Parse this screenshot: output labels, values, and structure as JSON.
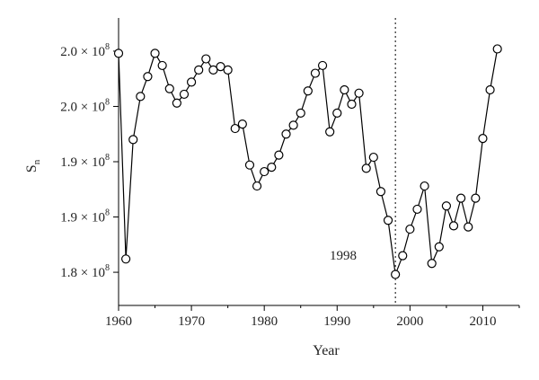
{
  "chart_data": {
    "type": "line",
    "xlabel": "Year",
    "ylabel": "S",
    "ylabel_sub": "n",
    "xlim": [
      1960,
      2015
    ],
    "ylim": [
      1.77,
      2.03
    ],
    "x_ticks": [
      1960,
      1970,
      1980,
      1990,
      2000,
      2010
    ],
    "y_ticks": [
      {
        "value": 1.8,
        "mantissa": "1.8",
        "suffix": " × 10",
        "exp": "8"
      },
      {
        "value": 1.85,
        "mantissa": "1.9",
        "suffix": " × 10",
        "exp": "8"
      },
      {
        "value": 1.9,
        "mantissa": "1.9",
        "suffix": " × 10",
        "exp": "8"
      },
      {
        "value": 1.95,
        "mantissa": "2.0",
        "suffix": " × 10",
        "exp": "8"
      },
      {
        "value": 2.0,
        "mantissa": "2.0",
        "suffix": " × 10",
        "exp": "8"
      }
    ],
    "annotation": {
      "text": "1998",
      "x": 1998
    },
    "series": [
      {
        "x": [
          1960,
          1961,
          1962,
          1963,
          1964,
          1965,
          1966,
          1967,
          1968,
          1969,
          1970,
          1971,
          1972,
          1973,
          1974,
          1975,
          1976,
          1977,
          1978,
          1979,
          1980,
          1981,
          1982,
          1983,
          1984,
          1985,
          1986,
          1987,
          1988,
          1989,
          1990,
          1991,
          1992,
          1993,
          1994,
          1995,
          1996,
          1997,
          1998,
          1999,
          2000,
          2001,
          2002,
          2003,
          2004,
          2005,
          2006,
          2007,
          2008,
          2009,
          2010,
          2011,
          2012
        ],
        "y": [
          1.998,
          1.812,
          1.92,
          1.959,
          1.977,
          1.998,
          1.987,
          1.966,
          1.953,
          1.961,
          1.972,
          1.983,
          1.993,
          1.983,
          1.986,
          1.983,
          1.93,
          1.934,
          1.897,
          1.878,
          1.891,
          1.895,
          1.906,
          1.925,
          1.933,
          1.944,
          1.964,
          1.98,
          1.987,
          1.927,
          1.944,
          1.965,
          1.952,
          1.962,
          1.894,
          1.904,
          1.873,
          1.847,
          1.798,
          1.815,
          1.839,
          1.857,
          1.878,
          1.808,
          1.823,
          1.86,
          1.842,
          1.867,
          1.841,
          1.867,
          1.921,
          1.965,
          2.002
        ]
      }
    ]
  }
}
